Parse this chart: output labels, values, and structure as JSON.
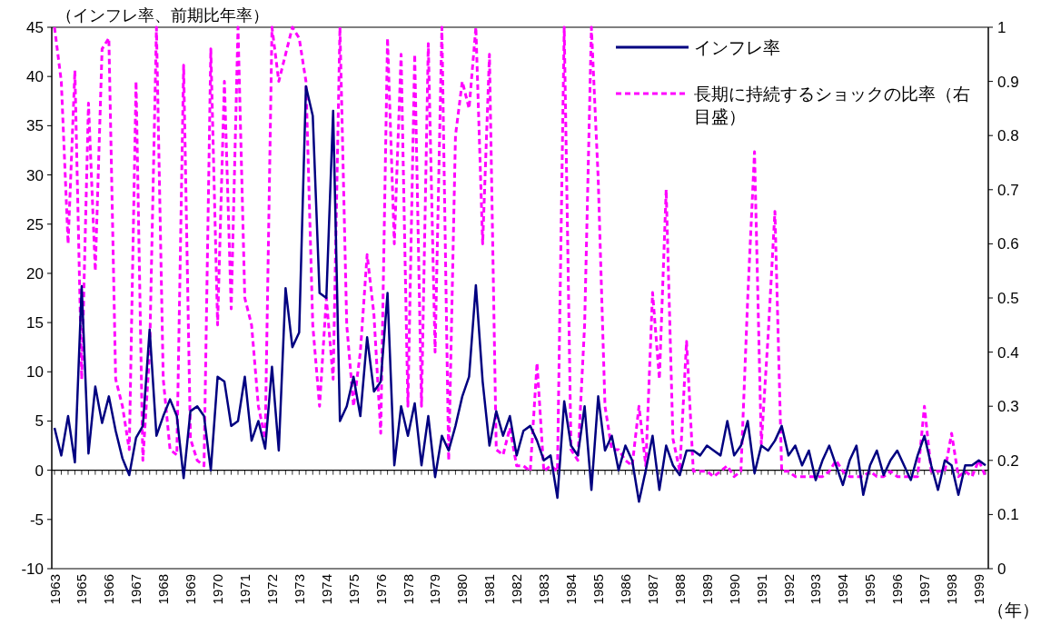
{
  "chart_data": {
    "type": "line",
    "ylabel": "（インフレ率、前期比年率）",
    "xlabel": "（年）",
    "categories": [
      "1963",
      null,
      null,
      null,
      "1965",
      null,
      null,
      null,
      "1966",
      null,
      null,
      null,
      "1967",
      null,
      null,
      null,
      "1968",
      null,
      null,
      null,
      "1969",
      null,
      null,
      null,
      "1970",
      null,
      null,
      null,
      "1971",
      null,
      null,
      null,
      "1972",
      null,
      null,
      null,
      "1973",
      null,
      null,
      null,
      "1974",
      null,
      null,
      null,
      "1975",
      null,
      null,
      null,
      "1976",
      null,
      null,
      null,
      "1978",
      null,
      null,
      null,
      "1979",
      null,
      null,
      null,
      "1980",
      null,
      null,
      null,
      "1981",
      null,
      null,
      null,
      "1982",
      null,
      null,
      null,
      "1983",
      null,
      null,
      null,
      "1984",
      null,
      null,
      null,
      "1985",
      null,
      null,
      null,
      "1986",
      null,
      null,
      null,
      "1987",
      null,
      null,
      null,
      "1988",
      null,
      null,
      null,
      "1989",
      null,
      null,
      null,
      "1990",
      null,
      null,
      null,
      "1991",
      null,
      null,
      null,
      "1992",
      null,
      null,
      null,
      "1993",
      null,
      null,
      null,
      "1994",
      null,
      null,
      null,
      "1995",
      null,
      null,
      null,
      "1996",
      null,
      null,
      null,
      "1997",
      null,
      null,
      null,
      "1998",
      null,
      null,
      null,
      "1999",
      null
    ],
    "series": [
      {
        "name": "インフレ率",
        "color": "#000080",
        "line_style": "solid",
        "values": [
          4.3,
          1.5,
          5.5,
          0.8,
          18.7,
          1.7,
          8.5,
          4.8,
          7.5,
          4.0,
          1.2,
          -0.5,
          3.3,
          4.5,
          14.3,
          3.5,
          5.5,
          7.2,
          5.5,
          -0.8,
          6.0,
          6.5,
          5.5,
          0.0,
          9.5,
          9.0,
          4.5,
          5.0,
          9.5,
          3.0,
          5.0,
          2.2,
          10.5,
          2.0,
          18.5,
          12.5,
          14.0,
          39.0,
          36.0,
          18.0,
          17.5,
          36.5,
          5.0,
          6.5,
          9.5,
          5.5,
          13.5,
          8.0,
          9.0,
          18.0,
          0.5,
          6.5,
          3.5,
          6.8,
          0.5,
          5.5,
          -0.7,
          3.5,
          2.0,
          4.5,
          7.5,
          9.5,
          18.8,
          9.0,
          2.5,
          6.0,
          3.5,
          5.5,
          1.5,
          4.0,
          4.5,
          3.0,
          1.0,
          1.5,
          -2.8,
          7.0,
          2.5,
          1.5,
          6.5,
          -2.0,
          7.5,
          2.0,
          3.5,
          0.0,
          2.5,
          1.0,
          -3.2,
          0.0,
          3.5,
          -2.0,
          2.5,
          0.5,
          -0.5,
          2.0,
          2.0,
          1.5,
          2.5,
          2.0,
          1.5,
          5.0,
          1.5,
          2.5,
          5.0,
          -0.3,
          2.5,
          2.0,
          3.0,
          4.5,
          1.5,
          2.5,
          0.5,
          2.0,
          -1.0,
          1.0,
          2.5,
          0.5,
          -1.5,
          1.0,
          2.5,
          -2.5,
          0.5,
          2.0,
          -0.5,
          1.0,
          2.0,
          0.5,
          -1.0,
          1.5,
          3.5,
          0.5,
          -2.0,
          1.0,
          0.5,
          -2.5,
          0.5,
          0.5,
          1.0,
          0.5
        ]
      },
      {
        "name": "長期に持続するショックの比率（右目盛）",
        "color": "#ff00ff",
        "line_style": "dashed",
        "axis": "y2",
        "values": [
          1.0,
          0.9,
          0.6,
          0.92,
          0.35,
          0.86,
          0.55,
          0.96,
          0.98,
          0.35,
          0.3,
          0.22,
          0.9,
          0.2,
          0.4,
          1.0,
          0.35,
          0.22,
          0.21,
          0.93,
          0.24,
          0.2,
          0.19,
          0.96,
          0.45,
          0.9,
          0.48,
          1.0,
          0.5,
          0.45,
          0.3,
          0.24,
          1.0,
          0.9,
          0.95,
          1.0,
          0.98,
          0.9,
          0.45,
          0.3,
          0.5,
          0.35,
          1.0,
          0.45,
          0.3,
          0.4,
          0.58,
          0.47,
          0.25,
          0.98,
          0.6,
          0.95,
          0.3,
          0.95,
          0.3,
          0.97,
          0.4,
          1.0,
          0.2,
          0.8,
          0.9,
          0.85,
          1.0,
          0.6,
          0.95,
          0.22,
          0.21,
          0.26,
          0.19,
          0.19,
          0.18,
          0.38,
          0.18,
          0.19,
          0.18,
          1.0,
          0.22,
          0.2,
          0.45,
          1.0,
          0.72,
          0.3,
          0.22,
          0.22,
          0.2,
          0.19,
          0.3,
          0.19,
          0.51,
          0.35,
          0.7,
          0.24,
          0.18,
          0.42,
          0.18,
          0.18,
          0.18,
          0.17,
          0.18,
          0.19,
          0.17,
          0.18,
          0.5,
          0.77,
          0.23,
          0.43,
          0.66,
          0.18,
          0.18,
          0.17,
          0.17,
          0.17,
          0.17,
          0.17,
          0.18,
          0.2,
          0.18,
          0.17,
          0.17,
          0.17,
          0.18,
          0.17,
          0.17,
          0.18,
          0.17,
          0.17,
          0.17,
          0.17,
          0.3,
          0.18,
          0.18,
          0.18,
          0.25,
          0.17,
          0.18,
          0.17,
          0.2,
          0.17
        ]
      }
    ],
    "ylim": [
      -10,
      45
    ],
    "yticks": [
      -10,
      -5,
      0,
      5,
      10,
      15,
      20,
      25,
      30,
      35,
      40,
      45
    ],
    "y2lim": [
      0,
      1
    ],
    "y2ticks": [
      0,
      0.1,
      0.2,
      0.3,
      0.4,
      0.5,
      0.6,
      0.7,
      0.8,
      0.9,
      1
    ],
    "legend": "top right"
  }
}
